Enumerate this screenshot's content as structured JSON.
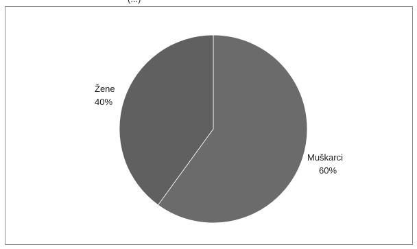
{
  "header_fragment": "(...)",
  "chart_data": {
    "type": "pie",
    "title": "",
    "slices": [
      {
        "label": "Muškarci",
        "value": 60,
        "value_label": "60%",
        "color": "#6b6b6b"
      },
      {
        "label": "Žene",
        "value": 40,
        "value_label": "40%",
        "color": "#606060"
      }
    ],
    "start_angle": "12 o'clock",
    "direction": "clockwise",
    "legend": "none"
  }
}
